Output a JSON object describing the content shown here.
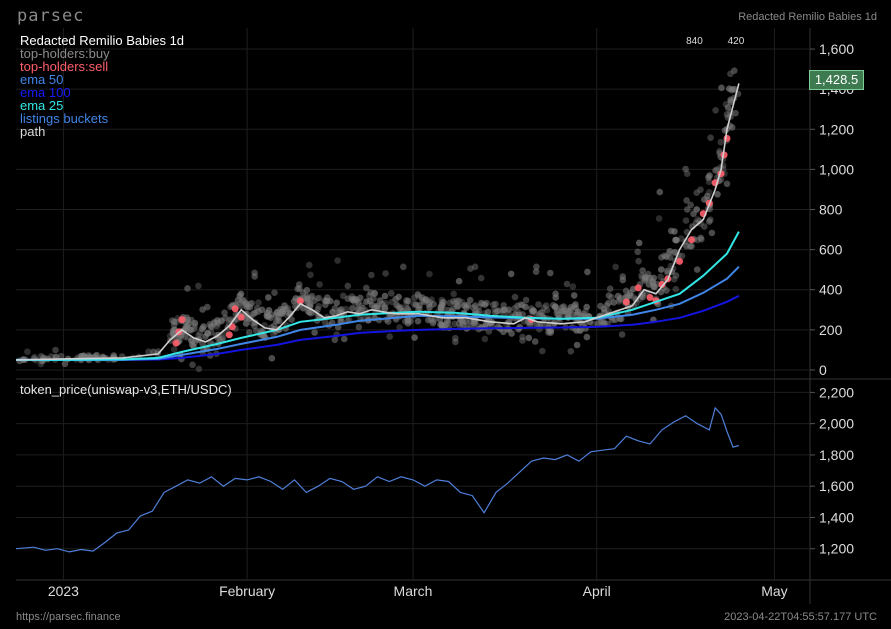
{
  "header": {
    "brand": "parsec",
    "collection": "Redacted Remilio Babies 1d"
  },
  "footer": {
    "url": "https://parsec.finance",
    "timestamp": "2023-04-22T04:55:57.177 UTC"
  },
  "legend": [
    {
      "label": "top-holders:buy",
      "color": "#8c8c8c"
    },
    {
      "label": "top-holders:sell",
      "color": "#ff5e6a"
    },
    {
      "label": "ema 50",
      "color": "#3f86e8"
    },
    {
      "label": "ema 100",
      "color": "#1414e0"
    },
    {
      "label": "ema 25",
      "color": "#33e6e6"
    },
    {
      "label": "listings buckets",
      "color": "#3f86e8"
    },
    {
      "label": "path",
      "color": "#d9d9d9"
    }
  ],
  "current_price_label": "1,428.5",
  "colors": {
    "background": "#000000",
    "grid": "#1e1e1e",
    "price_box": "#3d7a4f"
  },
  "chart_data": [
    {
      "type": "scatter",
      "title": "Redacted Remilio Babies 1d",
      "axis_top_labels": [
        "840",
        "420"
      ],
      "yticks": [
        0,
        200,
        400,
        600,
        800,
        1000,
        1200,
        1400,
        1600
      ],
      "ytick_labels": [
        "0",
        "200",
        "400",
        "600",
        "800",
        "1,000",
        "1,200",
        "1,400",
        "1,600"
      ],
      "ylim": [
        -40,
        1680
      ],
      "x_labels": [
        "2023",
        "February",
        "March",
        "April",
        "May"
      ],
      "x_label_days": [
        0,
        31,
        59,
        90,
        120
      ],
      "xlim": [
        -8,
        126
      ],
      "series": [
        {
          "name": "path",
          "color": "#cfcfcf",
          "x": [
            -8,
            0,
            10,
            16,
            18,
            20,
            22,
            24,
            26,
            28,
            30,
            32,
            34,
            36,
            38,
            40,
            42,
            44,
            46,
            48,
            50,
            52,
            56,
            60,
            64,
            68,
            72,
            76,
            78,
            80,
            84,
            88,
            92,
            96,
            98,
            100,
            102,
            104,
            106,
            108,
            110,
            111,
            112,
            114
          ],
          "y": [
            50,
            55,
            60,
            80,
            150,
            200,
            160,
            140,
            170,
            220,
            300,
            250,
            210,
            200,
            260,
            330,
            300,
            260,
            270,
            290,
            280,
            300,
            280,
            280,
            260,
            260,
            240,
            230,
            260,
            240,
            230,
            240,
            280,
            320,
            400,
            380,
            450,
            600,
            700,
            750,
            900,
            1000,
            1200,
            1428.5
          ]
        },
        {
          "name": "ema 25",
          "color": "#33e6e6",
          "x": [
            -8,
            0,
            10,
            16,
            20,
            26,
            30,
            36,
            40,
            46,
            50,
            56,
            60,
            66,
            72,
            78,
            84,
            90,
            96,
            100,
            104,
            108,
            112,
            114
          ],
          "y": [
            50,
            50,
            52,
            60,
            90,
            130,
            160,
            200,
            240,
            260,
            275,
            285,
            290,
            285,
            270,
            260,
            255,
            260,
            300,
            340,
            380,
            470,
            580,
            690
          ]
        },
        {
          "name": "ema 50",
          "color": "#3f86e8",
          "x": [
            -8,
            0,
            10,
            16,
            20,
            26,
            30,
            36,
            40,
            46,
            50,
            56,
            60,
            66,
            72,
            78,
            84,
            90,
            96,
            100,
            104,
            108,
            112,
            114
          ],
          "y": [
            50,
            50,
            51,
            55,
            75,
            105,
            130,
            165,
            200,
            225,
            245,
            260,
            270,
            268,
            262,
            258,
            255,
            255,
            275,
            300,
            330,
            385,
            455,
            515
          ]
        },
        {
          "name": "ema 100",
          "color": "#1414e0",
          "x": [
            -8,
            0,
            10,
            16,
            20,
            26,
            30,
            36,
            40,
            46,
            50,
            56,
            60,
            66,
            72,
            78,
            84,
            90,
            96,
            100,
            104,
            108,
            112,
            114
          ],
          "y": [
            50,
            50,
            50,
            52,
            60,
            80,
            100,
            125,
            150,
            170,
            185,
            195,
            200,
            205,
            208,
            210,
            212,
            215,
            225,
            240,
            260,
            295,
            340,
            370
          ]
        }
      ]
    },
    {
      "type": "line",
      "title": "token_price(uniswap-v3,ETH/USDC)",
      "yticks": [
        1200,
        1400,
        1600,
        1800,
        2000,
        2200
      ],
      "ytick_labels": [
        "1,200",
        "1,400",
        "1,600",
        "1,800",
        "2,000",
        "2,200"
      ],
      "ylim": [
        1000,
        2260
      ],
      "series": [
        {
          "name": "token_price(uniswap-v3,ETH/USDC)",
          "color": "#4f7fd9",
          "x": [
            -8,
            -5,
            -3,
            -1,
            1,
            3,
            5,
            7,
            9,
            11,
            13,
            15,
            17,
            19,
            21,
            23,
            25,
            27,
            29,
            31,
            33,
            35,
            37,
            39,
            41,
            43,
            45,
            47,
            49,
            51,
            53,
            55,
            57,
            59,
            61,
            63,
            65,
            67,
            69,
            71,
            73,
            75,
            77,
            79,
            81,
            83,
            85,
            87,
            89,
            91,
            93,
            95,
            97,
            99,
            101,
            103,
            105,
            107,
            109,
            110,
            111,
            112,
            113,
            114
          ],
          "y": [
            1200,
            1210,
            1190,
            1200,
            1180,
            1195,
            1185,
            1240,
            1300,
            1320,
            1410,
            1440,
            1560,
            1600,
            1640,
            1620,
            1660,
            1600,
            1650,
            1640,
            1660,
            1630,
            1580,
            1640,
            1560,
            1600,
            1650,
            1630,
            1580,
            1600,
            1660,
            1630,
            1660,
            1640,
            1600,
            1640,
            1630,
            1560,
            1540,
            1430,
            1560,
            1620,
            1690,
            1760,
            1780,
            1770,
            1800,
            1760,
            1820,
            1830,
            1840,
            1920,
            1890,
            1870,
            1960,
            2010,
            2050,
            2000,
            1960,
            2100,
            2060,
            1950,
            1850,
            1860
          ]
        }
      ]
    }
  ]
}
